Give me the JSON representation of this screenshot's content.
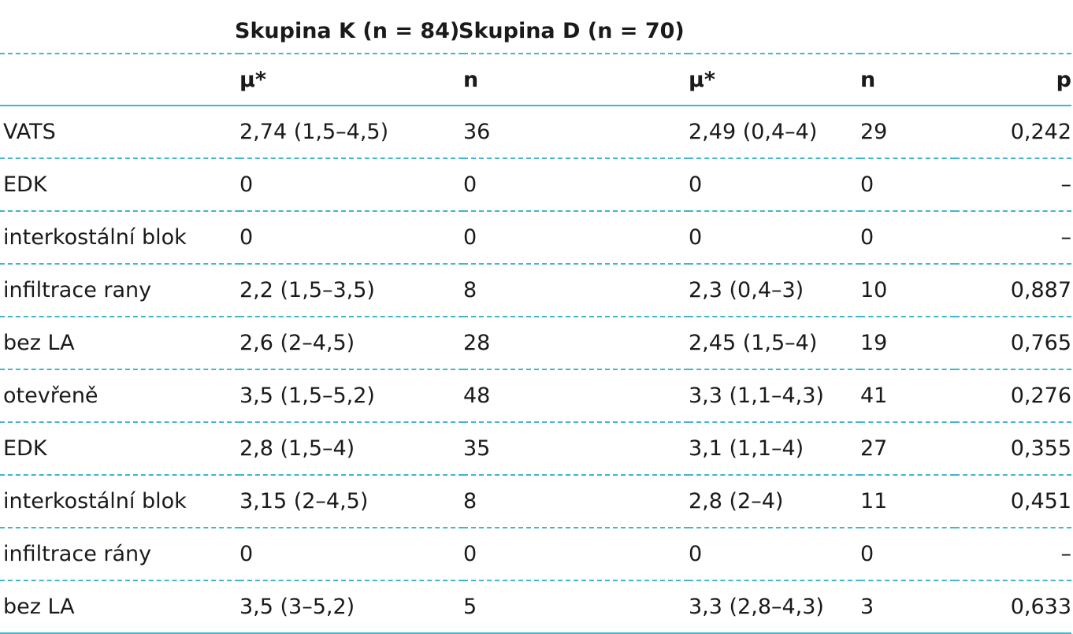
{
  "groups": {
    "group_k": "Skupina K (n = 84)",
    "group_d": "Skupina D (n = 70)"
  },
  "columns": [
    "",
    "μ*",
    "n",
    "μ*",
    "n",
    "p"
  ],
  "rows": [
    [
      "VATS",
      "2,74 (1,5–4,5)",
      "36",
      "2,49 (0,4–4)",
      "29",
      "0,242"
    ],
    [
      "EDK",
      "0",
      "0",
      "0",
      "0",
      "–"
    ],
    [
      "interkostální blok",
      "0",
      "0",
      "0",
      "0",
      "–"
    ],
    [
      "infiltrace rany",
      "2,2 (1,5–3,5)",
      "8",
      "2,3 (0,4–3)",
      "10",
      "0,887"
    ],
    [
      "bez LA",
      "2,6 (2–4,5)",
      "28",
      "2,45 (1,5–4)",
      "19",
      "0,765"
    ],
    [
      "otevřeně",
      "3,5 (1,5–5,2)",
      "48",
      "3,3 (1,1–4,3)",
      "41",
      "0,276"
    ],
    [
      "EDK",
      "2,8 (1,5–4)",
      "35",
      "3,1 (1,1–4)",
      "27",
      "0,355"
    ],
    [
      "interkostální blok",
      "3,15 (2–4,5)",
      "8",
      "2,8 (2–4)",
      "11",
      "0,451"
    ],
    [
      "infiltrace rány",
      "0",
      "0",
      "0",
      "0",
      "–"
    ],
    [
      "bez LA",
      "3,5 (3–5,2)",
      "5",
      "3,3 (2,8–4,3)",
      "3",
      "0,633"
    ]
  ],
  "colors": {
    "rule": "#3fb7cc",
    "text": "#1a1a1a"
  }
}
